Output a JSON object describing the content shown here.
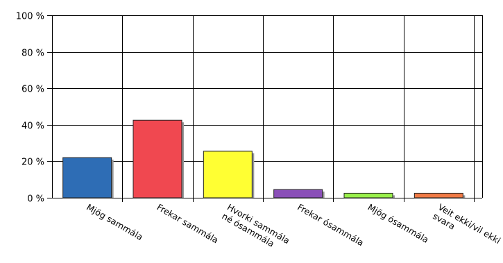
{
  "chart_data": {
    "type": "bar",
    "categories": [
      [
        "Mjög sammála"
      ],
      [
        "Frekar sammála"
      ],
      [
        "Hvorki sammála",
        "né ósammála"
      ],
      [
        "Frekar ósammála"
      ],
      [
        "Mjög ósammála"
      ],
      [
        "Veit ekki/vil ekki",
        "svara"
      ]
    ],
    "values": [
      22,
      42.5,
      25.5,
      4.5,
      2.5,
      2.5
    ],
    "colors": [
      "#2E6DB5",
      "#F04850",
      "#FFFF33",
      "#8A4FB8",
      "#99F04A",
      "#F07A45"
    ],
    "yticks": [
      "0 %",
      "20 %",
      "40 %",
      "60 %",
      "80 %",
      "100 %"
    ],
    "ylim": [
      0,
      100
    ],
    "grid": true,
    "title": "",
    "xlabel": "",
    "ylabel": ""
  }
}
